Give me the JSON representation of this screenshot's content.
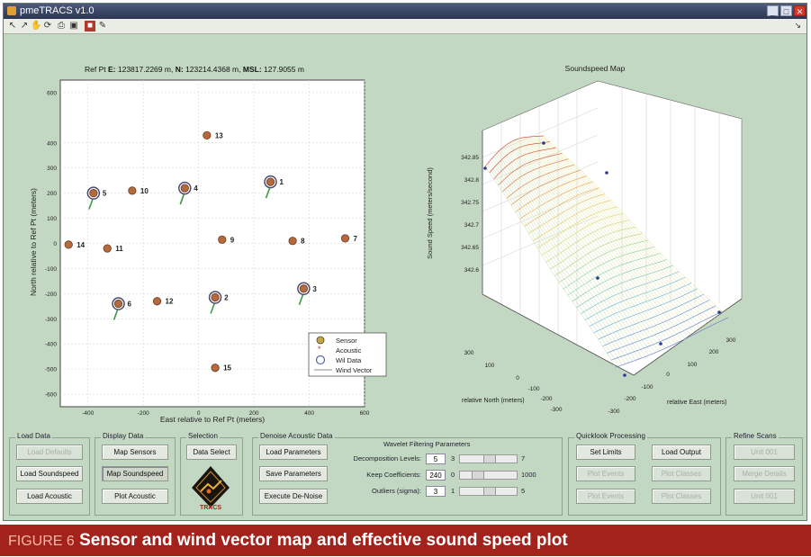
{
  "window": {
    "title": "pmeTRACS v1.0"
  },
  "toolbar": {
    "right_mark": "↘"
  },
  "left_plot": {
    "header_prefix": "Ref Pt",
    "header_e_label": "E:",
    "header_e_value": "123817.2269 m,",
    "header_n_label": "N:",
    "header_n_value": "123214.4368 m,",
    "header_msl_label": "MSL:",
    "header_msl_value": "127.9055 m",
    "xlabel": "East relative to Ref Pt (meters)",
    "ylabel": "North relative to Ref Pt (meters)",
    "xticks": [
      "-400",
      "-200",
      "0",
      "200",
      "400",
      "600"
    ],
    "yticks": [
      "600",
      "400",
      "300",
      "200",
      "100",
      "0",
      "-100",
      "-200",
      "-300",
      "-400",
      "-500",
      "-600"
    ],
    "legend": [
      "Sensor",
      "Acoustic",
      "Wil Data",
      "Wind Vector"
    ]
  },
  "chart_data": {
    "type": "scatter",
    "xlim": [
      -500,
      600
    ],
    "ylim": [
      -650,
      650
    ],
    "xlabel": "East relative to Ref Pt (meters)",
    "ylabel": "North relative to Ref Pt (meters)",
    "legend_position": "bottom-right",
    "points": [
      {
        "label": "13",
        "x": 30,
        "y": 430,
        "wind": false
      },
      {
        "label": "1",
        "x": 260,
        "y": 245,
        "wind": true
      },
      {
        "label": "5",
        "x": -380,
        "y": 200,
        "wind": true
      },
      {
        "label": "10",
        "x": -240,
        "y": 210,
        "wind": false
      },
      {
        "label": "4",
        "x": -50,
        "y": 220,
        "wind": true
      },
      {
        "label": "9",
        "x": 85,
        "y": 15,
        "wind": false
      },
      {
        "label": "8",
        "x": 340,
        "y": 10,
        "wind": false
      },
      {
        "label": "7",
        "x": 530,
        "y": 20,
        "wind": false
      },
      {
        "label": "14",
        "x": -470,
        "y": -5,
        "wind": false
      },
      {
        "label": "11",
        "x": -330,
        "y": -20,
        "wind": false
      },
      {
        "label": "3",
        "x": 380,
        "y": -180,
        "wind": true
      },
      {
        "label": "2",
        "x": 60,
        "y": -215,
        "wind": true
      },
      {
        "label": "12",
        "x": -150,
        "y": -230,
        "wind": false
      },
      {
        "label": "6",
        "x": -290,
        "y": -240,
        "wind": true
      },
      {
        "label": "15",
        "x": 60,
        "y": -495,
        "wind": false
      }
    ]
  },
  "right_plot": {
    "title": "Soundspeed Map",
    "zlabel": "Sound Speed (meters/second)",
    "zticks": [
      "342.85",
      "342.8",
      "342.75",
      "342.7",
      "342.65",
      "342.6"
    ],
    "y_label": "relative North (meters)",
    "y_ticks": [
      "300",
      "100",
      "0",
      "-100",
      "-200",
      "-300"
    ],
    "x_label": "relative East (meters)",
    "x_ticks": [
      "300",
      "200",
      "100",
      "0",
      "-100",
      "-200",
      "-300"
    ]
  },
  "controls": {
    "load_data": {
      "title": "Load Data",
      "load_defaults": "Load Defaults",
      "load_soundspeed": "Load Soundspeed",
      "load_acoustic": "Load Acoustic"
    },
    "display_data": {
      "title": "Display Data",
      "map_sensors": "Map Sensors",
      "map_soundspeed": "Map Soundspeed",
      "plot_acoustic": "Plot Acoustic"
    },
    "selection": {
      "title": "Selection",
      "data_select": "Data Select"
    },
    "denoise": {
      "title": "Denoise Acoustic Data",
      "load_parameters": "Load Parameters",
      "save_parameters": "Save Parameters",
      "execute_denoise": "Execute De-Noise"
    },
    "wavelet": {
      "title": "Wavelet Filtering Parameters",
      "rows": [
        {
          "label": "Decomposition Levels:",
          "value": "5",
          "min": "3",
          "max": "7",
          "position": 0.5
        },
        {
          "label": "Keep Coefficients:",
          "value": "240",
          "min": "0",
          "max": "1000",
          "position": 0.24
        },
        {
          "label": "Outliers (sigma):",
          "value": "3",
          "min": "1",
          "max": "5",
          "position": 0.5
        }
      ]
    },
    "quicklook": {
      "title": "Quicklook Processing",
      "set_limits": "Set Limits",
      "load_output": "Load Output",
      "plot_events": "Plot Events",
      "plot_classes": "Plot Classes",
      "plot_events2": "Plot Events",
      "plot_classes2": "Plot Classes"
    },
    "refine": {
      "title": "Refine Scans",
      "b1": "Unit 001",
      "b2": "Merge Details",
      "b3": "Unit 001"
    }
  },
  "logo": {
    "text": "TRACS"
  },
  "caption": {
    "figure_number": "FIGURE 6",
    "text": "Sensor and wind vector map and effective sound speed plot"
  }
}
